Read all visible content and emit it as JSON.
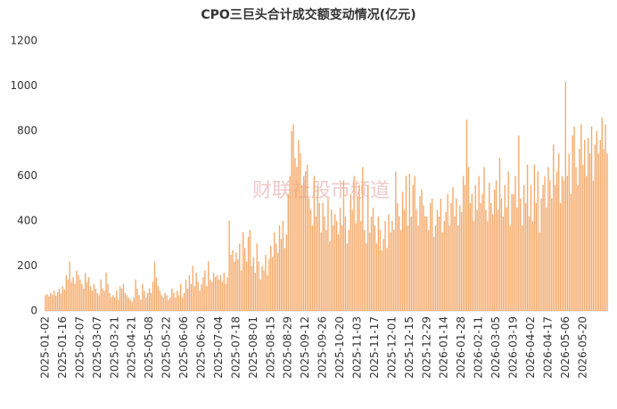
{
  "chart_data": {
    "type": "bar",
    "title": "CPO三巨头合计成交额变动情况(亿元)",
    "watermark": "财联社股市频道",
    "color": "#f4a96a",
    "ylim": [
      0,
      1200
    ],
    "yticks": [
      0,
      200,
      400,
      600,
      800,
      1000,
      1200
    ],
    "grid": false,
    "categories": [
      "2025-01-02",
      null,
      null,
      null,
      null,
      null,
      null,
      null,
      null,
      null,
      "2025-01-16",
      null,
      null,
      null,
      null,
      null,
      null,
      null,
      null,
      null,
      "2025-02-07",
      null,
      null,
      null,
      null,
      null,
      null,
      null,
      null,
      null,
      "2025-03-07",
      null,
      null,
      null,
      null,
      null,
      null,
      null,
      null,
      null,
      "2025-03-21",
      null,
      null,
      null,
      null,
      null,
      null,
      null,
      null,
      null,
      "2025-04-21",
      null,
      null,
      null,
      null,
      null,
      null,
      null,
      null,
      null,
      "2025-05-08",
      null,
      null,
      null,
      null,
      null,
      null,
      null,
      null,
      null,
      "2025-05-22",
      null,
      null,
      null,
      null,
      null,
      null,
      null,
      null,
      null,
      "2025-06-06",
      null,
      null,
      null,
      null,
      null,
      null,
      null,
      null,
      null,
      "2025-06-20",
      null,
      null,
      null,
      null,
      null,
      null,
      null,
      null,
      null,
      "2025-07-04",
      null,
      null,
      null,
      null,
      null,
      null,
      null,
      null,
      null,
      "2025-07-18",
      null,
      null,
      null,
      null,
      null,
      null,
      null,
      null,
      null,
      "2025-08-01",
      null,
      null,
      null,
      null,
      null,
      null,
      null,
      null,
      null,
      "2025-08-15",
      null,
      null,
      null,
      null,
      null,
      null,
      null,
      null,
      null,
      "2025-08-29",
      null,
      null,
      null,
      null,
      null,
      null,
      null,
      null,
      null,
      "2025-09-12",
      null,
      null,
      null,
      null,
      null,
      null,
      null,
      null,
      null,
      "2025-09-26",
      null,
      null,
      null,
      null,
      null,
      null,
      null,
      null,
      null,
      "2025-10-20",
      null,
      null,
      null,
      null,
      null,
      null,
      null,
      null,
      null,
      "2025-11-03",
      null,
      null,
      null,
      null,
      null,
      null,
      null,
      null,
      null,
      "2025-11-17",
      null,
      null,
      null,
      null,
      null,
      null,
      null,
      null,
      null,
      "2025-12-01",
      null,
      null,
      null,
      null,
      null,
      null,
      null,
      null,
      null,
      "2025-12-15",
      null,
      null,
      null,
      null,
      null,
      null,
      null,
      null,
      null,
      "2025-12-29",
      null,
      null,
      null,
      null,
      null,
      null,
      null,
      null,
      null,
      "2026-01-14",
      null,
      null,
      null,
      null,
      null,
      null,
      null,
      null,
      null,
      "2026-01-28",
      null,
      null,
      null,
      null,
      null,
      null,
      null,
      null,
      null,
      "2026-02-11",
      null,
      null,
      null,
      null,
      null,
      null,
      null,
      null,
      null,
      "2026-03-05",
      null,
      null,
      null,
      null,
      null,
      null,
      null,
      null,
      null,
      "2026-03-19",
      null,
      null,
      null,
      null,
      null,
      null,
      null,
      null,
      null,
      "2026-04-02",
      null,
      null,
      null,
      null,
      null,
      null,
      null,
      null,
      null,
      "2026-04-17",
      null,
      null,
      null,
      null,
      null,
      null,
      null,
      null,
      null,
      "2026-05-06",
      null,
      null,
      null,
      null,
      null,
      null,
      null,
      null,
      null,
      "2026-05-20",
      null,
      null,
      null,
      null,
      null,
      null,
      null,
      null,
      null,
      null,
      null,
      null,
      null,
      null
    ],
    "values": [
      70,
      75,
      65,
      80,
      72,
      90,
      68,
      85,
      100,
      78,
      110,
      95,
      160,
      140,
      220,
      130,
      150,
      120,
      180,
      160,
      140,
      120,
      100,
      170,
      130,
      150,
      110,
      90,
      120,
      100,
      80,
      70,
      140,
      100,
      90,
      170,
      120,
      80,
      60,
      70,
      60,
      90,
      50,
      110,
      100,
      120,
      80,
      70,
      60,
      50,
      40,
      60,
      140,
      100,
      70,
      50,
      120,
      90,
      60,
      80,
      100,
      80,
      130,
      220,
      150,
      110,
      90,
      70,
      60,
      80,
      70,
      50,
      60,
      100,
      80,
      60,
      90,
      70,
      120,
      60,
      80,
      140,
      100,
      160,
      120,
      200,
      110,
      170,
      130,
      90,
      120,
      150,
      180,
      110,
      220,
      140,
      130,
      170,
      150,
      160,
      140,
      160,
      130,
      170,
      120,
      150,
      400,
      250,
      270,
      220,
      260,
      230,
      300,
      180,
      350,
      280,
      220,
      330,
      360,
      200,
      240,
      170,
      300,
      220,
      140,
      200,
      180,
      250,
      160,
      230,
      290,
      240,
      350,
      300,
      260,
      380,
      320,
      400,
      280,
      340,
      520,
      600,
      800,
      830,
      680,
      640,
      760,
      700,
      560,
      600,
      620,
      650,
      500,
      450,
      380,
      600,
      420,
      550,
      480,
      350,
      480,
      420,
      360,
      500,
      310,
      450,
      380,
      430,
      400,
      340,
      460,
      380,
      580,
      420,
      300,
      360,
      520,
      450,
      600,
      390,
      510,
      560,
      400,
      640,
      360,
      300,
      560,
      350,
      420,
      460,
      380,
      300,
      420,
      360,
      270,
      320,
      400,
      280,
      430,
      350,
      400,
      360,
      620,
      480,
      420,
      360,
      530,
      450,
      600,
      380,
      610,
      420,
      560,
      600,
      450,
      380,
      510,
      540,
      470,
      420,
      420,
      360,
      480,
      500,
      330,
      380,
      450,
      420,
      500,
      350,
      400,
      440,
      520,
      380,
      480,
      550,
      420,
      500,
      380,
      470,
      440,
      600,
      560,
      850,
      640,
      480,
      520,
      400,
      560,
      450,
      600,
      480,
      520,
      640,
      450,
      400,
      570,
      480,
      430,
      540,
      580,
      450,
      680,
      500,
      420,
      560,
      460,
      620,
      380,
      520,
      520,
      600,
      460,
      780,
      500,
      380,
      560,
      480,
      650,
      420,
      560,
      400,
      650,
      480,
      620,
      350,
      500,
      560,
      600,
      460,
      640,
      580,
      500,
      740,
      560,
      620,
      700,
      480,
      600,
      580,
      1020,
      600,
      700,
      520,
      780,
      820,
      640,
      560,
      720,
      830,
      650,
      760,
      600,
      770,
      700,
      820,
      580,
      740,
      800,
      700,
      760,
      860,
      720,
      830,
      700
    ]
  }
}
